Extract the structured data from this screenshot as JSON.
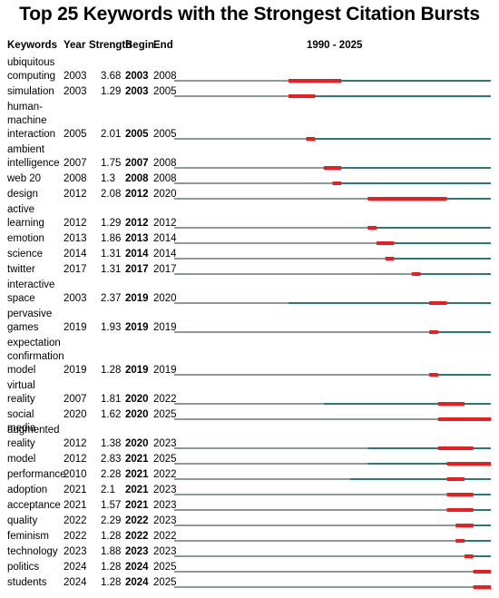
{
  "title": "Top 25 Keywords with the Strongest Citation Bursts",
  "headers": {
    "keywords": "Keywords",
    "year": "Year",
    "strength": "Strength",
    "begin": "Begin",
    "end": "End",
    "range": "1990 - 2025"
  },
  "colors": {
    "before": "#8c9a9b",
    "active": "#2b7a78",
    "burst": "#ee1c1c"
  },
  "chart_data": {
    "type": "table",
    "title": "Top 25 Keywords with the Strongest Citation Bursts",
    "timeline_range": [
      1990,
      2025
    ],
    "columns": [
      "Keywords",
      "Year",
      "Strength",
      "Begin",
      "End",
      "1990 - 2025"
    ],
    "rows": [
      {
        "keyword": "ubiquitous computing",
        "year": "2003",
        "strength": "3.68",
        "begin": "2003",
        "end": "2008"
      },
      {
        "keyword": "simulation",
        "year": "2003",
        "strength": "1.29",
        "begin": "2003",
        "end": "2005"
      },
      {
        "keyword": "human-machine interaction",
        "year": "2005",
        "strength": "2.01",
        "begin": "2005",
        "end": "2005"
      },
      {
        "keyword": "ambient intelligence",
        "year": "2007",
        "strength": "1.75",
        "begin": "2007",
        "end": "2008"
      },
      {
        "keyword": "web 20",
        "year": "2008",
        "strength": "1.3",
        "begin": "2008",
        "end": "2008"
      },
      {
        "keyword": "design",
        "year": "2012",
        "strength": "2.08",
        "begin": "2012",
        "end": "2020"
      },
      {
        "keyword": "active learning",
        "year": "2012",
        "strength": "1.29",
        "begin": "2012",
        "end": "2012"
      },
      {
        "keyword": "emotion",
        "year": "2013",
        "strength": "1.86",
        "begin": "2013",
        "end": "2014"
      },
      {
        "keyword": "science",
        "year": "2014",
        "strength": "1.31",
        "begin": "2014",
        "end": "2014"
      },
      {
        "keyword": "twitter",
        "year": "2017",
        "strength": "1.31",
        "begin": "2017",
        "end": "2017"
      },
      {
        "keyword": "interactive space",
        "year": "2003",
        "strength": "2.37",
        "begin": "2019",
        "end": "2020"
      },
      {
        "keyword": "pervasive games",
        "year": "2019",
        "strength": "1.93",
        "begin": "2019",
        "end": "2019"
      },
      {
        "keyword": "expectation confirmation model",
        "year": "2019",
        "strength": "1.28",
        "begin": "2019",
        "end": "2019"
      },
      {
        "keyword": "virtual reality",
        "year": "2007",
        "strength": "1.81",
        "begin": "2020",
        "end": "2022"
      },
      {
        "keyword": "social media",
        "year": "2020",
        "strength": "1.62",
        "begin": "2020",
        "end": "2025"
      },
      {
        "keyword": "augmented reality",
        "year": "2012",
        "strength": "1.38",
        "begin": "2020",
        "end": "2023"
      },
      {
        "keyword": "model",
        "year": "2012",
        "strength": "2.83",
        "begin": "2021",
        "end": "2025"
      },
      {
        "keyword": "performance",
        "year": "2010",
        "strength": "2.28",
        "begin": "2021",
        "end": "2022"
      },
      {
        "keyword": "adoption",
        "year": "2021",
        "strength": "2.1",
        "begin": "2021",
        "end": "2023"
      },
      {
        "keyword": "acceptance",
        "year": "2021",
        "strength": "1.57",
        "begin": "2021",
        "end": "2023"
      },
      {
        "keyword": "quality",
        "year": "2022",
        "strength": "2.29",
        "begin": "2022",
        "end": "2023"
      },
      {
        "keyword": "feminism",
        "year": "2022",
        "strength": "1.28",
        "begin": "2022",
        "end": "2022"
      },
      {
        "keyword": "technology",
        "year": "2023",
        "strength": "1.88",
        "begin": "2023",
        "end": "2023"
      },
      {
        "keyword": "politics",
        "year": "2024",
        "strength": "1.28",
        "begin": "2024",
        "end": "2025"
      },
      {
        "keyword": "students",
        "year": "2024",
        "strength": "1.28",
        "begin": "2024",
        "end": "2025"
      }
    ]
  }
}
